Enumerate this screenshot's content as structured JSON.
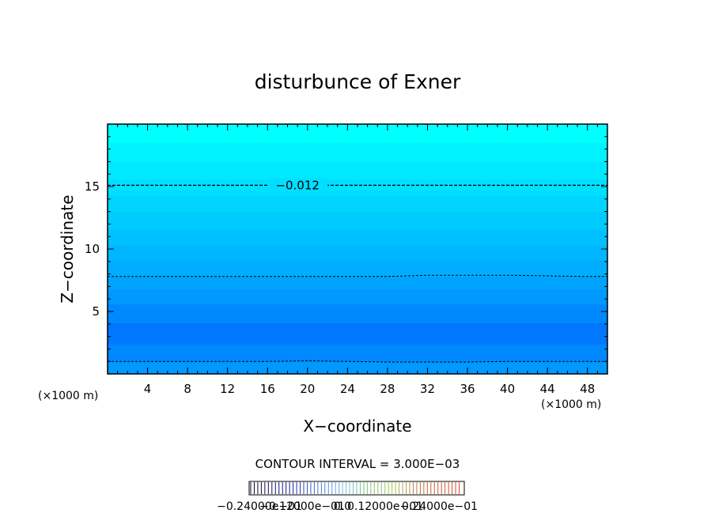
{
  "chart_data": {
    "type": "contour",
    "title": "disturbunce of Exner",
    "xlabel": "X−coordinate",
    "ylabel": "Z−coordinate",
    "x_unit": "(×1000 m)",
    "y_unit": "(×1000 m)",
    "xlim": [
      0,
      50
    ],
    "ylim": [
      0,
      20
    ],
    "x_ticks": [
      4,
      8,
      12,
      16,
      20,
      24,
      28,
      32,
      36,
      40,
      44,
      48
    ],
    "y_ticks": [
      5,
      10,
      15
    ],
    "contour_lines": [
      {
        "level": "−0.012",
        "label": "−0.012",
        "z": [
          15.1,
          15.1,
          15.1,
          15.1,
          15.1,
          15.1,
          15.1,
          15.1,
          15.1,
          15.1,
          15.1,
          15.1,
          15.1,
          15.1
        ]
      },
      {
        "level": "",
        "label": "",
        "z": [
          7.8,
          7.8,
          7.8,
          7.8,
          7.8,
          7.8,
          7.8,
          7.8,
          7.9,
          7.9,
          7.9,
          7.85,
          7.8,
          7.8
        ]
      },
      {
        "level": "",
        "label": "",
        "z": [
          1.0,
          1.0,
          1.0,
          1.0,
          1.0,
          1.05,
          1.0,
          0.95,
          0.95,
          0.95,
          1.0,
          1.0,
          1.0,
          1.0
        ]
      }
    ],
    "contour_x": [
      0,
      4,
      8,
      12,
      16,
      20,
      24,
      28,
      32,
      36,
      40,
      44,
      48,
      50
    ],
    "fill_bands": [
      {
        "z0": 0,
        "z1": 1.0,
        "color": "#0099ff"
      },
      {
        "z0": 1.0,
        "z1": 2.4,
        "color": "#0088ff"
      },
      {
        "z0": 2.4,
        "z1": 4.1,
        "color": "#0077ff"
      },
      {
        "z0": 4.1,
        "z1": 5.6,
        "color": "#0088ff"
      },
      {
        "z0": 5.6,
        "z1": 6.8,
        "color": "#0099ff"
      },
      {
        "z0": 6.8,
        "z1": 7.8,
        "color": "#00a3ff"
      },
      {
        "z0": 7.8,
        "z1": 9.1,
        "color": "#00adff"
      },
      {
        "z0": 9.1,
        "z1": 10.3,
        "color": "#00b7ff"
      },
      {
        "z0": 10.3,
        "z1": 11.6,
        "color": "#00c1ff"
      },
      {
        "z0": 11.6,
        "z1": 13.0,
        "color": "#00cbff"
      },
      {
        "z0": 13.0,
        "z1": 14.3,
        "color": "#00d5ff"
      },
      {
        "z0": 14.3,
        "z1": 15.6,
        "color": "#00dfff"
      },
      {
        "z0": 15.6,
        "z1": 17.0,
        "color": "#00e9ff"
      },
      {
        "z0": 17.0,
        "z1": 18.5,
        "color": "#00f3ff"
      },
      {
        "z0": 18.5,
        "z1": 20,
        "color": "#00ffff"
      }
    ],
    "contour_interval_text": "CONTOUR INTERVAL = 3.000E−03",
    "colorbar_labels": [
      "−0.24000e−01",
      "−0.12000e−01",
      "0.0",
      "0.12000e−01",
      "0.24000e−01"
    ]
  }
}
